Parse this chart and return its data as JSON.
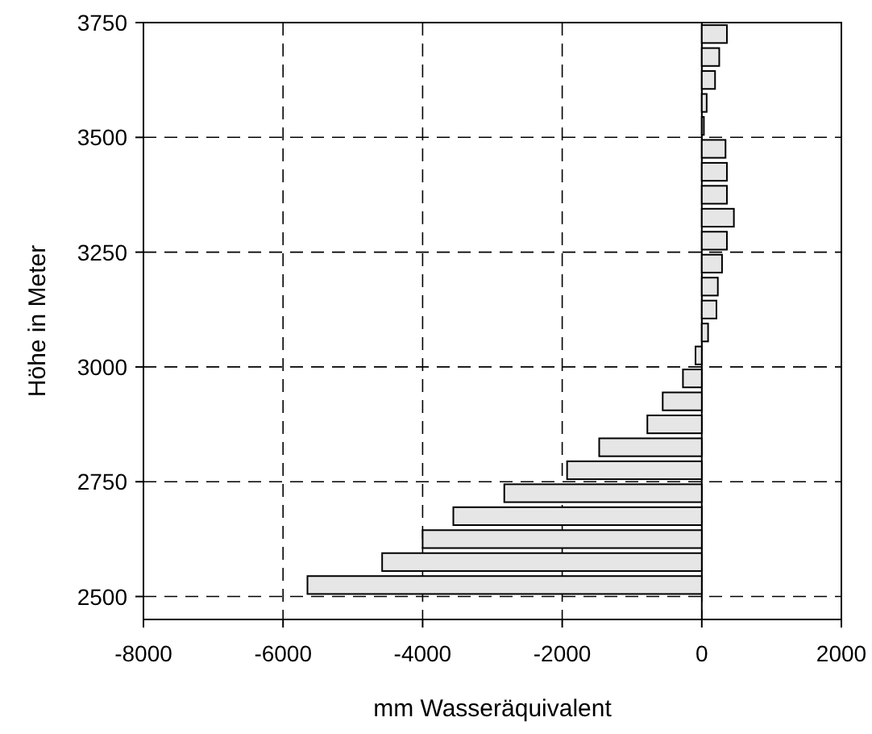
{
  "chart_data": {
    "type": "bar",
    "orientation": "horizontal",
    "xlabel": "mm Wasseräquivalent",
    "ylabel": "Höhe in Meter",
    "x": [
      2525,
      2575,
      2625,
      2675,
      2725,
      2775,
      2825,
      2875,
      2925,
      2975,
      3025,
      3075,
      3125,
      3175,
      3225,
      3275,
      3325,
      3375,
      3425,
      3475,
      3525,
      3575,
      3625,
      3675,
      3725
    ],
    "values": [
      -5650,
      -4580,
      -4000,
      -3560,
      -2830,
      -1930,
      -1470,
      -780,
      -560,
      -270,
      -90,
      90,
      210,
      230,
      290,
      360,
      460,
      360,
      360,
      340,
      30,
      70,
      190,
      250,
      360
    ],
    "color": "#e6e6e6",
    "xlim": [
      -8000,
      2000
    ],
    "xticks": [
      -8000,
      -6000,
      -4000,
      -2000,
      0,
      2000
    ],
    "ylim": [
      2450,
      3750
    ],
    "yticks": [
      2500,
      2750,
      3000,
      3250,
      3500,
      3750
    ],
    "grid": true
  }
}
